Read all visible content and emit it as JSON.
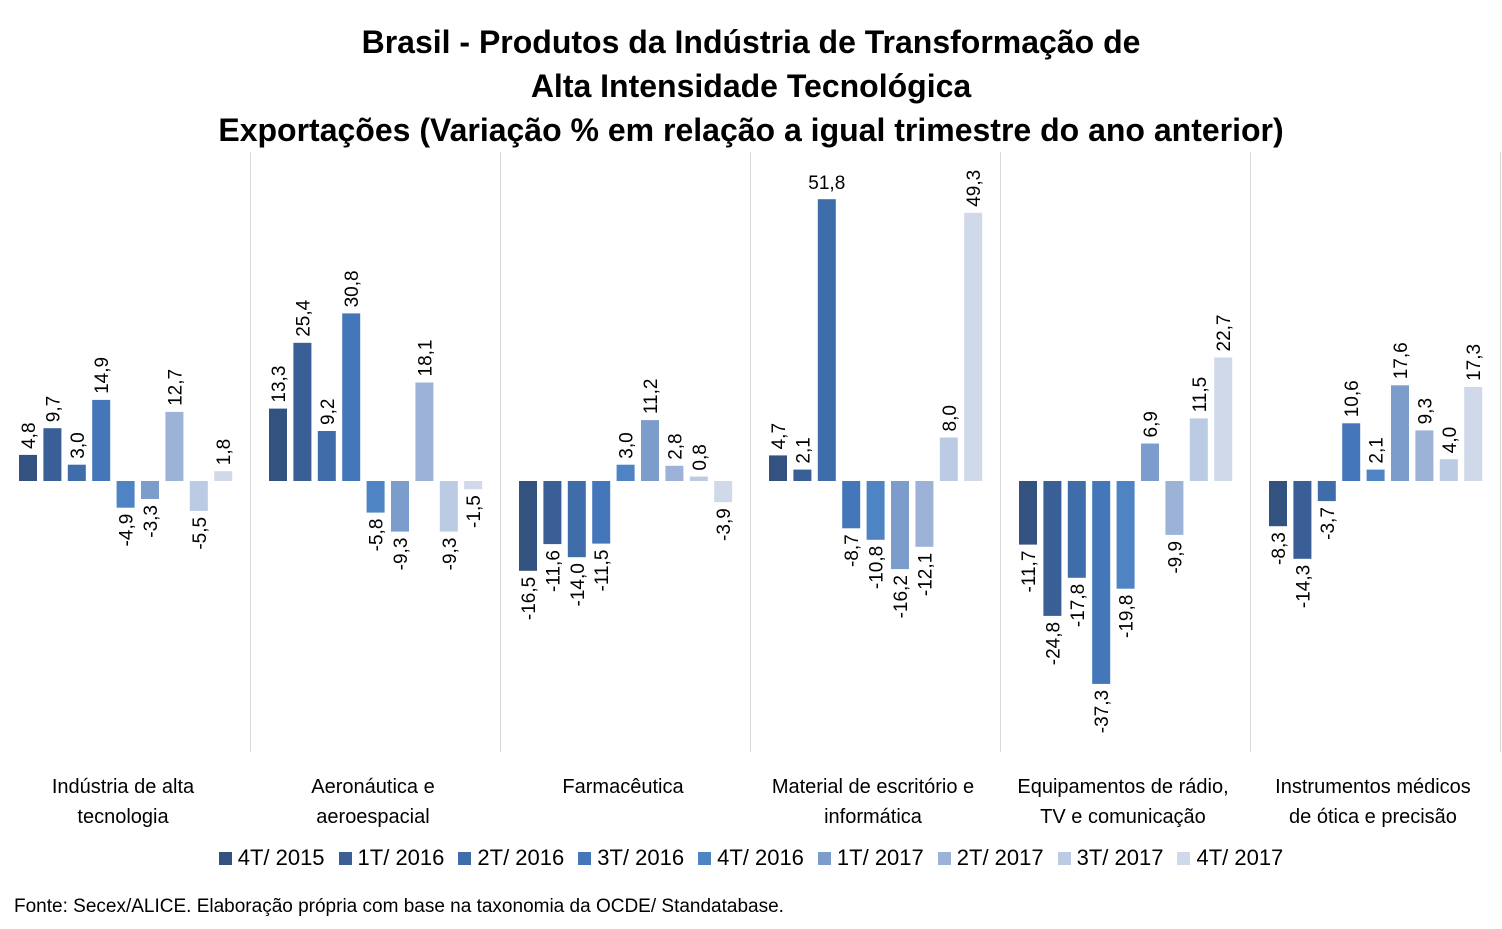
{
  "chart_data": {
    "type": "bar",
    "title": [
      "Brasil - Produtos da Indústria de Transformação de",
      "Alta Intensidade Tecnológica",
      "Exportações (Variação % em relação a igual trimestre do ano anterior)"
    ],
    "categories": [
      "Indústria de alta tecnologia",
      "Aeronáutica e aeroespacial",
      "Farmacêutica",
      "Material de escritório e informática",
      "Equipamentos de rádio, TV e comunicação",
      "Instrumentos médicos de ótica e precisão"
    ],
    "category_lines": [
      [
        "Indústria de alta",
        "tecnologia"
      ],
      [
        "Aeronáutica e",
        "aeroespacial"
      ],
      [
        "Farmacêutica"
      ],
      [
        "Material de escritório e",
        "informática"
      ],
      [
        "Equipamentos de rádio,",
        "TV e comunicação"
      ],
      [
        "Instrumentos médicos",
        "de ótica e precisão"
      ]
    ],
    "series": [
      {
        "name": "4T/ 2015",
        "color": "#34527f",
        "values": [
          4.8,
          13.3,
          -16.5,
          4.7,
          -11.7,
          -8.3
        ],
        "labels": [
          "4,8",
          "13,3",
          "-16,5",
          "4,7",
          "-11,7",
          "-8,3"
        ]
      },
      {
        "name": "1T/ 2016",
        "color": "#3a5f96",
        "values": [
          9.7,
          25.4,
          -11.6,
          2.1,
          -24.8,
          -14.3
        ],
        "labels": [
          "9,7",
          "25,4",
          "-11,6",
          "2,1",
          "-24,8",
          "-14,3"
        ]
      },
      {
        "name": "2T/ 2016",
        "color": "#3f6da9",
        "values": [
          3.0,
          9.2,
          -14.0,
          51.8,
          -17.8,
          -3.7
        ],
        "labels": [
          "3,0",
          "9,2",
          "-14,0",
          "51,8",
          "-17,8",
          "-3,7"
        ]
      },
      {
        "name": "3T/ 2016",
        "color": "#4477b9",
        "values": [
          14.9,
          30.8,
          -11.5,
          -8.7,
          -37.3,
          10.6
        ],
        "labels": [
          "14,9",
          "30,8",
          "-11,5",
          "-8,7",
          "-37,3",
          "10,6"
        ]
      },
      {
        "name": "4T/ 2016",
        "color": "#4f84c4",
        "values": [
          -4.9,
          -5.8,
          3.0,
          -10.8,
          -19.8,
          2.1
        ],
        "labels": [
          "-4,9",
          "-5,8",
          "3,0",
          "-10,8",
          "-19,8",
          "2,1"
        ]
      },
      {
        "name": "1T/ 2017",
        "color": "#7c9ccb",
        "values": [
          -3.3,
          -9.3,
          11.2,
          -16.2,
          6.9,
          17.6
        ],
        "labels": [
          "-3,3",
          "-9,3",
          "11,2",
          "-16,2",
          "6,9",
          "17,6"
        ]
      },
      {
        "name": "2T/ 2017",
        "color": "#9cb3d7",
        "values": [
          12.7,
          18.1,
          2.8,
          -12.1,
          -9.9,
          9.3
        ],
        "labels": [
          "12,7",
          "18,1",
          "2,8",
          "-12,1",
          "-9,9",
          "9,3"
        ]
      },
      {
        "name": "3T/ 2017",
        "color": "#bccbe4",
        "values": [
          -5.5,
          -9.3,
          0.8,
          8.0,
          11.5,
          4.0
        ],
        "labels": [
          "-5,5",
          "-9,3",
          "0,8",
          "8,0",
          "11,5",
          "4,0"
        ]
      },
      {
        "name": "4T/ 2017",
        "color": "#cfd9ea",
        "values": [
          1.8,
          -1.5,
          -3.9,
          49.3,
          22.7,
          17.3
        ],
        "labels": [
          "1,8",
          "-1,5",
          "-3,9",
          "49,3",
          "22,7",
          "17,3"
        ]
      }
    ],
    "legend_position": "bottom",
    "grid": false,
    "source": "Fonte: Secex/ALICE. Elaboração própria com base na taxonomia da OCDE/ Standatabase."
  }
}
